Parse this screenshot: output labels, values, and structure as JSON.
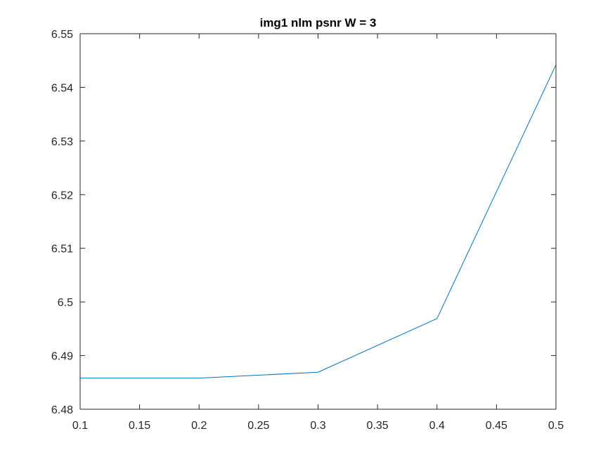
{
  "chart_data": {
    "type": "line",
    "title": "img1 nlm psnr W = 3",
    "xlabel": "",
    "ylabel": "",
    "xlim": [
      0.1,
      0.5
    ],
    "ylim": [
      6.48,
      6.55
    ],
    "xticks": [
      "0.1",
      "0.15",
      "0.2",
      "0.25",
      "0.3",
      "0.35",
      "0.4",
      "0.45",
      "0.5"
    ],
    "yticks": [
      "6.48",
      "6.49",
      "6.5",
      "6.51",
      "6.52",
      "6.53",
      "6.54",
      "6.55"
    ],
    "grid": false,
    "series": [
      {
        "x": [
          0.1,
          0.2,
          0.3,
          0.4,
          0.5
        ],
        "y": [
          6.4858,
          6.4858,
          6.4869,
          6.4969,
          6.5442
        ],
        "color": "#0072bd"
      }
    ]
  }
}
